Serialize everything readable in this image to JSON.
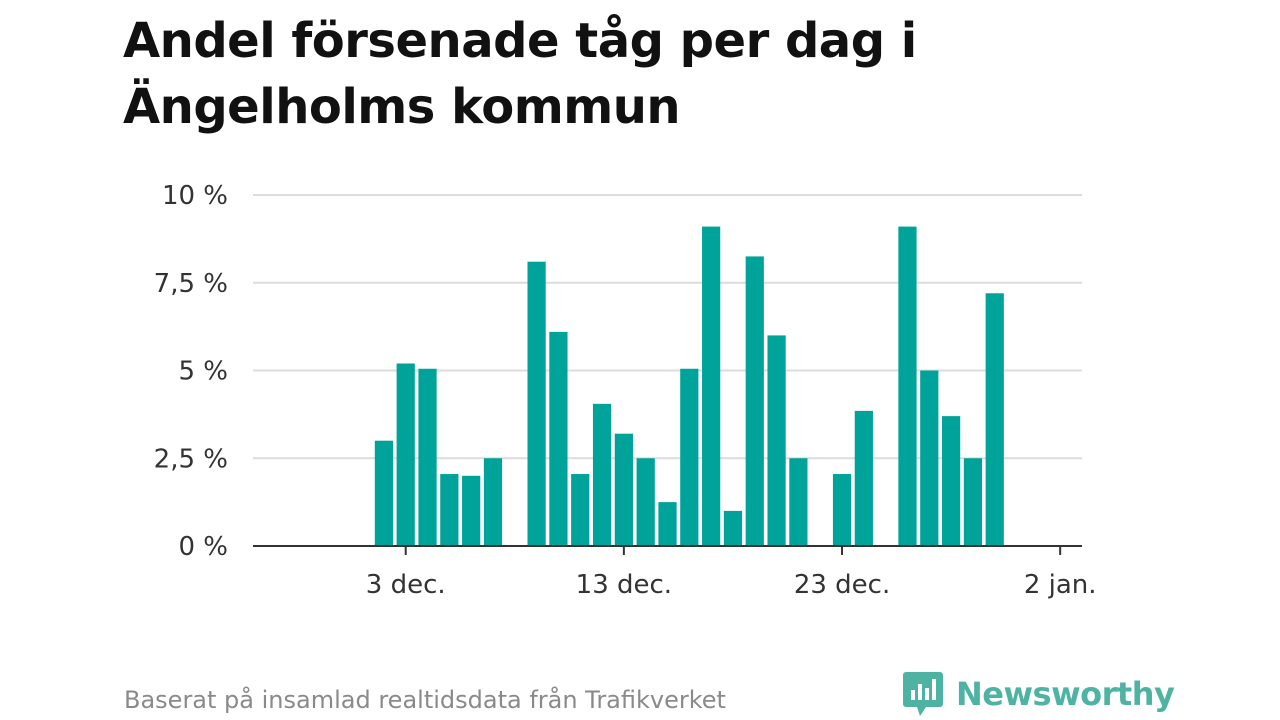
{
  "chart_data": {
    "type": "bar",
    "title": "Andel försenade tåg per dag i Ängelholms kommun",
    "xlabel": "",
    "ylabel": "",
    "ylim": [
      0,
      10
    ],
    "y_ticks": [
      0,
      2.5,
      5,
      7.5,
      10
    ],
    "y_tick_labels": [
      "0 %",
      "2,5 %",
      "5 %",
      "7,5 %",
      "10 %"
    ],
    "x_ticks": [
      "2023-12-03",
      "2023-12-13",
      "2023-12-23",
      "2024-01-02"
    ],
    "x_tick_labels": [
      "3 dec.",
      "13 dec.",
      "23 dec.",
      "2 jan."
    ],
    "xlim": [
      "2023-11-26",
      "2024-01-03"
    ],
    "bar_color": "#00a39a",
    "grid": true,
    "x": [
      "2023-12-02",
      "2023-12-03",
      "2023-12-04",
      "2023-12-05",
      "2023-12-06",
      "2023-12-07",
      "2023-12-09",
      "2023-12-10",
      "2023-12-11",
      "2023-12-12",
      "2023-12-13",
      "2023-12-14",
      "2023-12-15",
      "2023-12-16",
      "2023-12-17",
      "2023-12-18",
      "2023-12-19",
      "2023-12-20",
      "2023-12-21",
      "2023-12-23",
      "2023-12-24",
      "2023-12-26",
      "2023-12-27",
      "2023-12-28",
      "2023-12-29",
      "2023-12-30"
    ],
    "values": [
      3.0,
      5.2,
      5.05,
      2.05,
      2.0,
      2.5,
      8.1,
      6.1,
      2.05,
      4.05,
      3.2,
      2.5,
      1.25,
      5.05,
      9.1,
      1.0,
      8.25,
      6.0,
      2.5,
      2.05,
      3.85,
      9.1,
      5.0,
      3.7,
      2.5,
      7.2
    ]
  },
  "footer": {
    "source": "Baserat på insamlad realtidsdata från Trafikverket",
    "brand": "Newsworthy",
    "brand_color": "#4fb3a4",
    "logo_icon": "bar-chart-speech-bubble-icon"
  }
}
